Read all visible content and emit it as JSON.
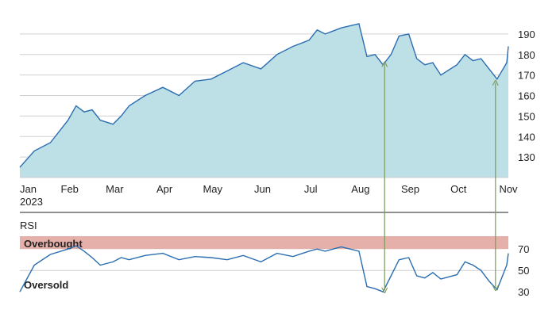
{
  "colors": {
    "area_fill": "#bddfe6",
    "line": "#2a6db0",
    "grid": "#d0d0d0",
    "axis": "#222222",
    "overbought_band": "#e6b0aa",
    "oversold_band": "#c4cfb4",
    "arrow": "#7a9a5a"
  },
  "chart_data": [
    {
      "type": "area",
      "x_tick_labels": [
        "Jan",
        "Feb",
        "Mar",
        "Apr",
        "May",
        "Jun",
        "Jul",
        "Aug",
        "Sep",
        "Oct",
        "Nov"
      ],
      "x_year_label": "2023",
      "y_ticks": [
        130,
        140,
        150,
        160,
        170,
        180,
        190
      ],
      "ylim": [
        120,
        195
      ],
      "grid": true,
      "series": [
        {
          "x": [
            "2023-01-01",
            "2023-01-10",
            "2023-01-20",
            "2023-01-31",
            "2023-02-05",
            "2023-02-10",
            "2023-02-15",
            "2023-02-20",
            "2023-02-28",
            "2023-03-05",
            "2023-03-10",
            "2023-03-20",
            "2023-03-31",
            "2023-04-10",
            "2023-04-20",
            "2023-04-30",
            "2023-05-10",
            "2023-05-20",
            "2023-05-31",
            "2023-06-10",
            "2023-06-20",
            "2023-06-30",
            "2023-07-05",
            "2023-07-10",
            "2023-07-20",
            "2023-07-31",
            "2023-08-05",
            "2023-08-10",
            "2023-08-15",
            "2023-08-20",
            "2023-08-25",
            "2023-08-31",
            "2023-09-05",
            "2023-09-10",
            "2023-09-15",
            "2023-09-20",
            "2023-09-30",
            "2023-10-05",
            "2023-10-10",
            "2023-10-15",
            "2023-10-20",
            "2023-10-25",
            "2023-10-31",
            "2023-11-01"
          ],
          "y": [
            125,
            133,
            137,
            148,
            155,
            152,
            153,
            148,
            146,
            150,
            155,
            160,
            164,
            160,
            167,
            168,
            172,
            176,
            173,
            180,
            184,
            187,
            192,
            190,
            193,
            195,
            179,
            180,
            175,
            180,
            189,
            190,
            178,
            175,
            176,
            170,
            175,
            180,
            177,
            178,
            173,
            168,
            176,
            184
          ]
        }
      ]
    },
    {
      "type": "line",
      "title": "RSI",
      "y_ticks": [
        30,
        50,
        70
      ],
      "ylim": [
        25,
        82
      ],
      "bands": [
        {
          "label": "Overbought",
          "from": 70,
          "to": 82
        },
        {
          "label": "Oversold",
          "from": 25,
          "to": 30
        }
      ],
      "series": [
        {
          "x": [
            "2023-01-01",
            "2023-01-10",
            "2023-01-20",
            "2023-01-31",
            "2023-02-05",
            "2023-02-10",
            "2023-02-15",
            "2023-02-20",
            "2023-02-28",
            "2023-03-05",
            "2023-03-10",
            "2023-03-20",
            "2023-03-31",
            "2023-04-10",
            "2023-04-20",
            "2023-04-30",
            "2023-05-10",
            "2023-05-20",
            "2023-05-31",
            "2023-06-10",
            "2023-06-20",
            "2023-06-30",
            "2023-07-05",
            "2023-07-10",
            "2023-07-20",
            "2023-07-31",
            "2023-08-05",
            "2023-08-10",
            "2023-08-15",
            "2023-08-20",
            "2023-08-25",
            "2023-08-31",
            "2023-09-05",
            "2023-09-10",
            "2023-09-15",
            "2023-09-20",
            "2023-09-30",
            "2023-10-05",
            "2023-10-10",
            "2023-10-15",
            "2023-10-20",
            "2023-10-25",
            "2023-10-31",
            "2023-11-01"
          ],
          "y": [
            30,
            55,
            65,
            70,
            73,
            68,
            62,
            55,
            58,
            62,
            60,
            64,
            66,
            60,
            63,
            62,
            60,
            64,
            58,
            66,
            63,
            68,
            70,
            68,
            72,
            68,
            35,
            33,
            30,
            45,
            60,
            62,
            45,
            43,
            48,
            42,
            46,
            58,
            55,
            50,
            40,
            32,
            55,
            66
          ]
        }
      ],
      "arrows": [
        {
          "x": "2023-08-16",
          "from_price": 176,
          "to_rsi": 30
        },
        {
          "x": "2023-10-24",
          "from_price": 167,
          "to_rsi": 32
        }
      ]
    }
  ]
}
